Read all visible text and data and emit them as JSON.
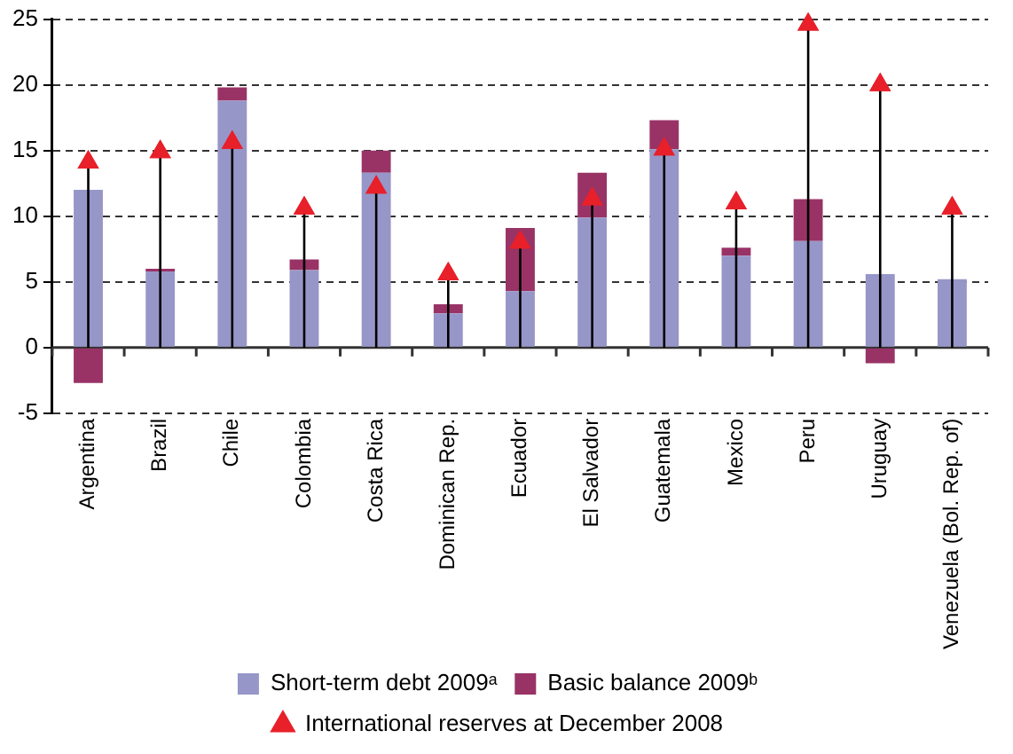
{
  "chart_data": {
    "type": "bar",
    "stacked": true,
    "categories": [
      "Argentina",
      "Brazil",
      "Chile",
      "Colombia",
      "Costa Rica",
      "Dominican Rep.",
      "Ecuador",
      "El Salvador",
      "Guatemala",
      "Mexico",
      "Peru",
      "Uruguay",
      "Venezuela (Bol. Rep. of)"
    ],
    "series": [
      {
        "name": "Short-term debt 2009ᵃ",
        "color": "#9796c8",
        "values": [
          12.0,
          5.8,
          18.8,
          5.9,
          13.3,
          2.6,
          4.3,
          9.9,
          15.1,
          7.0,
          8.1,
          5.6,
          5.2
        ]
      },
      {
        "name": "Basic balance 2009ᵇ",
        "color": "#993366",
        "values": [
          -2.7,
          0.2,
          1.0,
          0.8,
          1.7,
          0.7,
          4.8,
          3.4,
          2.2,
          0.6,
          3.2,
          -1.2,
          null
        ]
      },
      {
        "name": "International reserves at December 2008",
        "type": "scatter",
        "marker": "triangle",
        "color": "#e8202a",
        "x": [
          "Argentina",
          "Brazil",
          "Chile",
          "Colombia",
          "Costa Rica",
          "Dominican Rep.",
          "Ecuador",
          "El Salvador",
          "Guatemala",
          "Mexico",
          "Peru",
          "Uruguay",
          "Venezuela (Bol. Rep. of)"
        ],
        "values": [
          14.1,
          14.9,
          15.6,
          10.6,
          12.2,
          5.6,
          8.0,
          11.3,
          15.1,
          11.0,
          24.6,
          20.0,
          10.6
        ]
      }
    ],
    "ylim": [
      -5,
      25
    ],
    "yticks": [
      -5,
      0,
      5,
      10,
      15,
      20,
      25
    ],
    "grid": "y",
    "legend": "bottom"
  }
}
